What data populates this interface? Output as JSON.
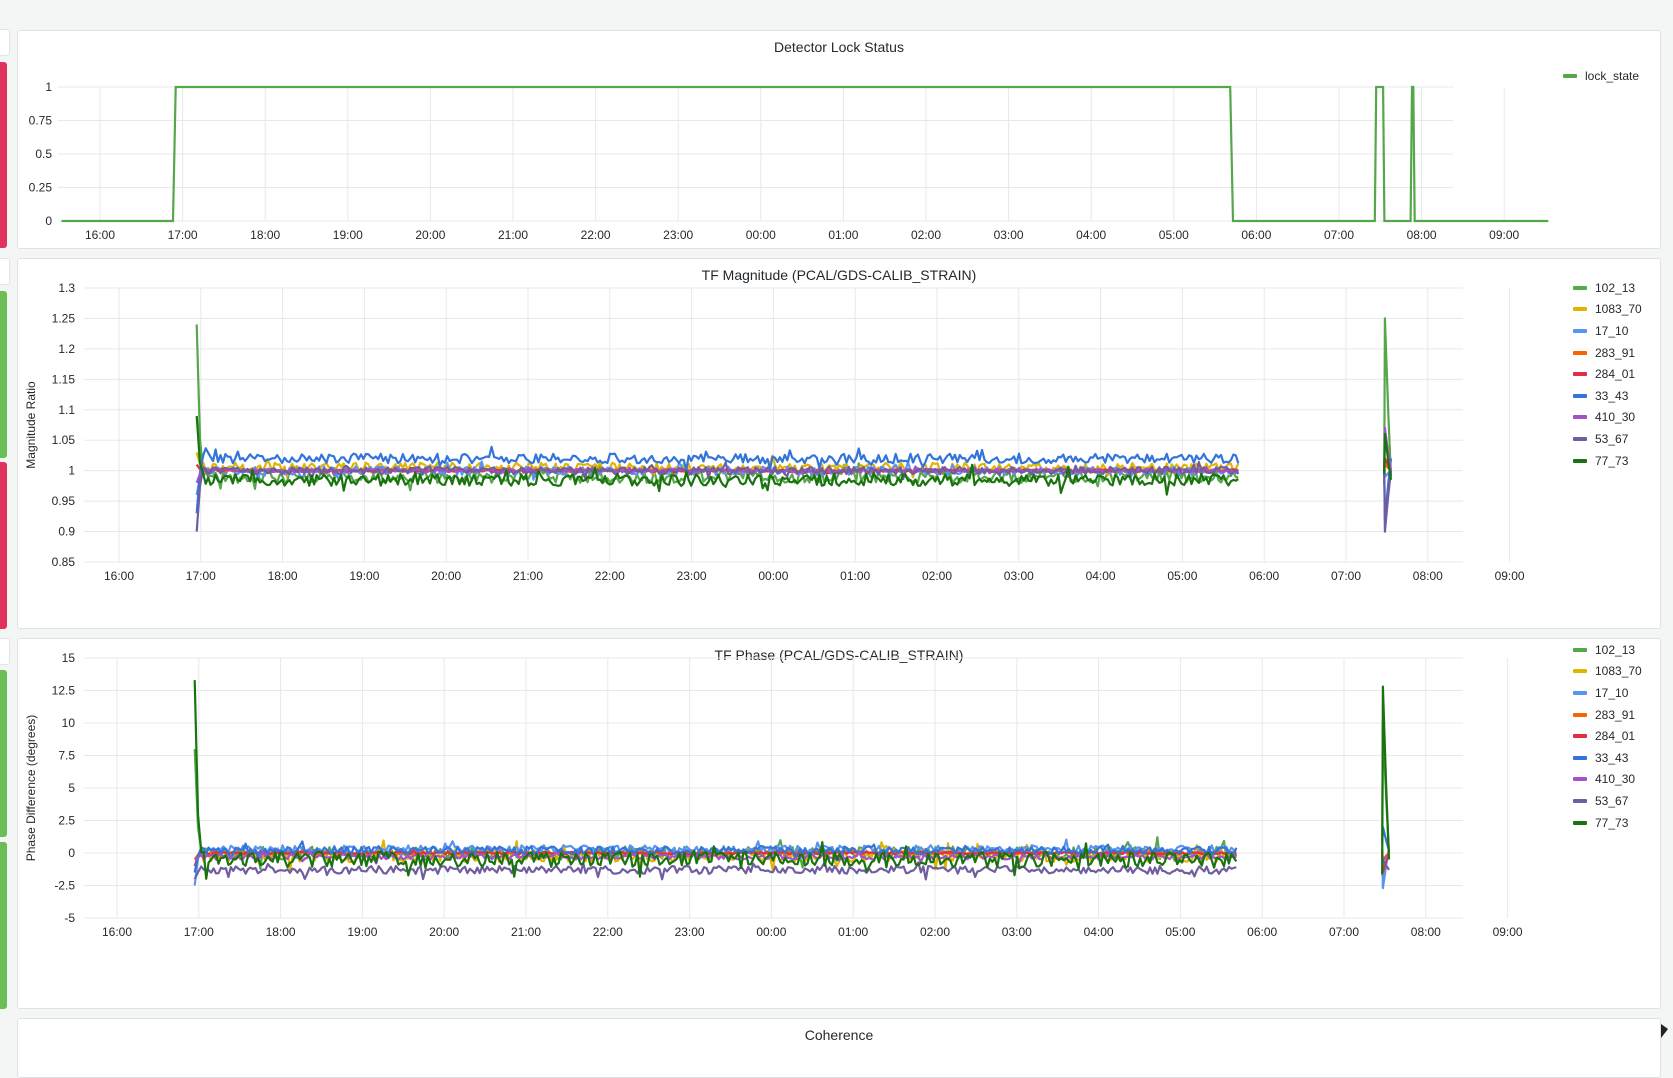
{
  "page": {
    "background": "#f4f5f5"
  },
  "side_indicators": [
    {
      "color": "#e0325c"
    },
    {
      "color": "#e0325c"
    },
    {
      "color": "#6cbd55"
    },
    {
      "color": "#e0325c"
    },
    {
      "color": "#6cbd55"
    },
    {
      "color": "#6cbd55"
    }
  ],
  "time_ticks": [
    "16:00",
    "17:00",
    "18:00",
    "19:00",
    "20:00",
    "21:00",
    "22:00",
    "23:00",
    "00:00",
    "01:00",
    "02:00",
    "03:00",
    "04:00",
    "05:00",
    "06:00",
    "07:00",
    "08:00",
    "09:00"
  ],
  "panels": {
    "lock": {
      "title": "Detector Lock Status",
      "legend": [
        {
          "label": "lock_state",
          "color": "#56a64b"
        }
      ]
    },
    "magnitude": {
      "title": "TF Magnitude (PCAL/GDS-CALIB_STRAIN)",
      "ylabel": "Magnitude Ratio",
      "legend": [
        {
          "label": "102_13",
          "color": "#56a64b"
        },
        {
          "label": "1083_70",
          "color": "#e0b400"
        },
        {
          "label": "17_10",
          "color": "#5794f2"
        },
        {
          "label": "283_91",
          "color": "#fa6400"
        },
        {
          "label": "284_01",
          "color": "#e02f44"
        },
        {
          "label": "33_43",
          "color": "#3274d9"
        },
        {
          "label": "410_30",
          "color": "#a352cc"
        },
        {
          "label": "53_67",
          "color": "#705da0"
        },
        {
          "label": "77_73",
          "color": "#19730e"
        }
      ]
    },
    "phase": {
      "title": "TF Phase (PCAL/GDS-CALIB_STRAIN)",
      "ylabel": "Phase Difference (degrees)",
      "legend": [
        {
          "label": "102_13",
          "color": "#56a64b"
        },
        {
          "label": "1083_70",
          "color": "#e0b400"
        },
        {
          "label": "17_10",
          "color": "#5794f2"
        },
        {
          "label": "283_91",
          "color": "#fa6400"
        },
        {
          "label": "284_01",
          "color": "#e02f44"
        },
        {
          "label": "33_43",
          "color": "#3274d9"
        },
        {
          "label": "410_30",
          "color": "#a352cc"
        },
        {
          "label": "53_67",
          "color": "#705da0"
        },
        {
          "label": "77_73",
          "color": "#19730e"
        }
      ]
    },
    "coherence": {
      "title": "Coherence"
    }
  },
  "chart_data": [
    {
      "type": "line",
      "title": "Detector Lock Status",
      "xlabel": "",
      "ylabel": "",
      "x_ticks": [
        "16:00",
        "17:00",
        "18:00",
        "19:00",
        "20:00",
        "21:00",
        "22:00",
        "23:00",
        "00:00",
        "01:00",
        "02:00",
        "03:00",
        "04:00",
        "05:00",
        "06:00",
        "07:00",
        "08:00",
        "09:00"
      ],
      "y_ticks": [
        "0",
        "0.25",
        "0.5",
        "0.75",
        "1"
      ],
      "ylim": [
        0,
        1
      ],
      "grid": true,
      "legend_position": "right",
      "series": [
        {
          "name": "lock_state",
          "color": "#56a64b",
          "points": [
            [
              "15:32",
              0
            ],
            [
              "16:53",
              0
            ],
            [
              "16:55",
              1
            ],
            [
              "05:41",
              1
            ],
            [
              "05:43",
              0
            ],
            [
              "07:26",
              0
            ],
            [
              "07:27",
              1
            ],
            [
              "07:32",
              1
            ],
            [
              "07:33",
              0
            ],
            [
              "07:52",
              0
            ],
            [
              "07:53",
              1
            ],
            [
              "07:54",
              1
            ],
            [
              "07:55",
              0
            ],
            [
              "09:32",
              0
            ]
          ]
        }
      ]
    },
    {
      "type": "line",
      "title": "TF Magnitude (PCAL/GDS-CALIB_STRAIN)",
      "ylabel": "Magnitude Ratio",
      "x_ticks": [
        "16:00",
        "17:00",
        "18:00",
        "19:00",
        "20:00",
        "21:00",
        "22:00",
        "23:00",
        "00:00",
        "01:00",
        "02:00",
        "03:00",
        "04:00",
        "05:00",
        "06:00",
        "07:00",
        "08:00",
        "09:00"
      ],
      "y_ticks": [
        "0.85",
        "0.9",
        "0.95",
        "1",
        "1.05",
        "1.1",
        "1.15",
        "1.2",
        "1.25",
        "1.3"
      ],
      "ylim": [
        0.85,
        1.3
      ],
      "grid": true,
      "legend_position": "right",
      "segments": [
        {
          "start": "16:57",
          "end": "05:41"
        },
        {
          "start": "07:28",
          "end": "07:33"
        }
      ],
      "series": [
        {
          "name": "102_13",
          "color": "#56a64b",
          "level": 0.99,
          "noise": 0.01,
          "spike_start": 1.24,
          "spike_end": 1.25
        },
        {
          "name": "1083_70",
          "color": "#e0b400",
          "level": 1.005,
          "noise": 0.008,
          "spike_start": 1.03,
          "spike_end": 1.02
        },
        {
          "name": "17_10",
          "color": "#5794f2",
          "level": 1.0,
          "noise": 0.007,
          "spike_start": 0.96,
          "spike_end": 0.99
        },
        {
          "name": "283_91",
          "color": "#fa6400",
          "level": 1.0,
          "noise": 0.002,
          "spike_start": 1.01,
          "spike_end": 1.01
        },
        {
          "name": "284_01",
          "color": "#e02f44",
          "level": 1.0,
          "noise": 0.002,
          "spike_start": 1.01,
          "spike_end": 1.02
        },
        {
          "name": "33_43",
          "color": "#3274d9",
          "level": 1.02,
          "noise": 0.008,
          "spike_start": 0.93,
          "spike_end": 0.92
        },
        {
          "name": "410_30",
          "color": "#a352cc",
          "level": 1.0,
          "noise": 0.003,
          "spike_start": 0.98,
          "spike_end": 1.07
        },
        {
          "name": "53_67",
          "color": "#705da0",
          "level": 1.0,
          "noise": 0.006,
          "spike_start": 0.9,
          "spike_end": 0.9
        },
        {
          "name": "77_73",
          "color": "#19730e",
          "level": 0.985,
          "noise": 0.01,
          "spike_start": 1.09,
          "spike_end": 1.06
        }
      ]
    },
    {
      "type": "line",
      "title": "TF Phase (PCAL/GDS-CALIB_STRAIN)",
      "ylabel": "Phase Difference (degrees)",
      "x_ticks": [
        "16:00",
        "17:00",
        "18:00",
        "19:00",
        "20:00",
        "21:00",
        "22:00",
        "23:00",
        "00:00",
        "01:00",
        "02:00",
        "03:00",
        "04:00",
        "05:00",
        "06:00",
        "07:00",
        "08:00",
        "09:00"
      ],
      "y_ticks": [
        "-5",
        "-2.5",
        "0",
        "2.5",
        "5",
        "7.5",
        "10",
        "12.5",
        "15"
      ],
      "ylim": [
        -5,
        15
      ],
      "grid": true,
      "legend_position": "right",
      "segments": [
        {
          "start": "16:57",
          "end": "05:41"
        },
        {
          "start": "07:28",
          "end": "07:33"
        }
      ],
      "series": [
        {
          "name": "102_13",
          "color": "#56a64b",
          "level": 0.0,
          "noise": 0.5,
          "spike_start": 8.0,
          "spike_end": 10.0
        },
        {
          "name": "1083_70",
          "color": "#e0b400",
          "level": -0.2,
          "noise": 0.5,
          "spike_start": -1.0,
          "spike_end": -0.5
        },
        {
          "name": "17_10",
          "color": "#5794f2",
          "level": 0.3,
          "noise": 0.3,
          "spike_start": -2.5,
          "spike_end": -2.7
        },
        {
          "name": "283_91",
          "color": "#fa6400",
          "level": 0.0,
          "noise": 0.1,
          "spike_start": -0.5,
          "spike_end": -0.5
        },
        {
          "name": "284_01",
          "color": "#e02f44",
          "level": 0.0,
          "noise": 0.1,
          "spike_start": -1.0,
          "spike_end": -1.5
        },
        {
          "name": "33_43",
          "color": "#3274d9",
          "level": 0.2,
          "noise": 0.3,
          "spike_start": -1.5,
          "spike_end": 2.0
        },
        {
          "name": "410_30",
          "color": "#a352cc",
          "level": -0.3,
          "noise": 0.2,
          "spike_start": -0.5,
          "spike_end": -0.5
        },
        {
          "name": "53_67",
          "color": "#705da0",
          "level": -1.3,
          "noise": 0.3,
          "spike_start": -2.0,
          "spike_end": -0.5
        },
        {
          "name": "77_73",
          "color": "#19730e",
          "level": -0.5,
          "noise": 0.6,
          "spike_start": 13.3,
          "spike_end": 12.8
        }
      ]
    }
  ]
}
